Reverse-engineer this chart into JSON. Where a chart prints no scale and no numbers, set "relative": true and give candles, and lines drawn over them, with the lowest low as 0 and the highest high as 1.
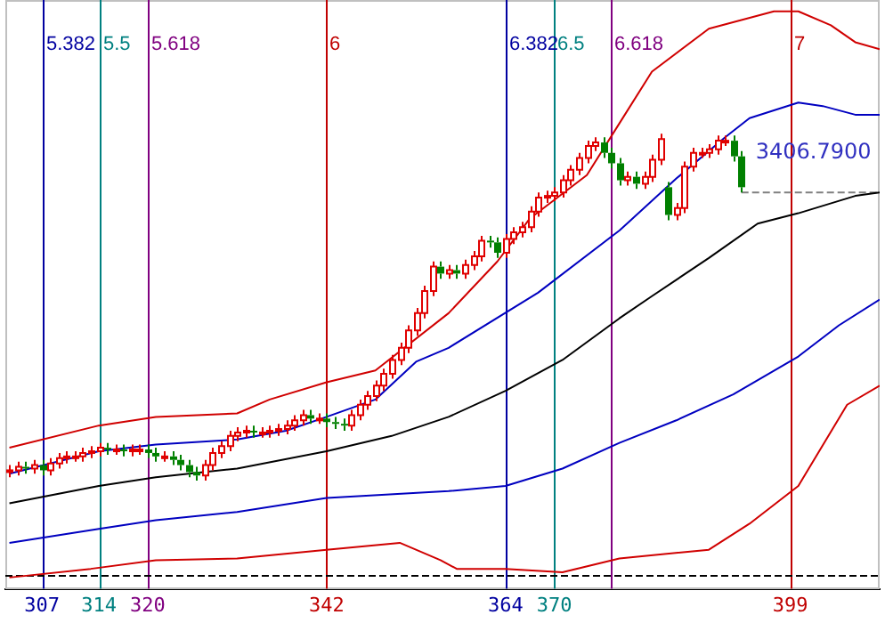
{
  "chart_data": {
    "type": "candlestick",
    "relative": true,
    "grid": false,
    "xlim": [
      302.5,
      410
    ],
    "xticks": [
      307,
      314,
      320,
      342,
      364,
      370,
      399
    ],
    "x": [
      303,
      304,
      305,
      306,
      307,
      308,
      309,
      310,
      311,
      312,
      313,
      314,
      315,
      316,
      317,
      318,
      319,
      320,
      321,
      322,
      323,
      324,
      325,
      326,
      327,
      328,
      329,
      330,
      331,
      332,
      333,
      334,
      335,
      336,
      337,
      338,
      339,
      340,
      341,
      342,
      343,
      344,
      345,
      346,
      347,
      348,
      349,
      350,
      351,
      352,
      353,
      354,
      355,
      356,
      357,
      358,
      359,
      360,
      361,
      362,
      363,
      364,
      365,
      366,
      367,
      368,
      369,
      370,
      371,
      372,
      373,
      374,
      375,
      376,
      377,
      378,
      379,
      380,
      381,
      382,
      383,
      384,
      385,
      386,
      387,
      388,
      389,
      390,
      391,
      392,
      393
    ],
    "ohlc": [
      [
        0.025,
        0.045,
        0.01,
        0.03
      ],
      [
        0.03,
        0.055,
        0.015,
        0.04
      ],
      [
        0.04,
        0.055,
        0.02,
        0.035
      ],
      [
        0.035,
        0.06,
        0.02,
        0.045
      ],
      [
        0.045,
        0.06,
        0.015,
        0.03
      ],
      [
        0.03,
        0.065,
        0.015,
        0.05
      ],
      [
        0.05,
        0.08,
        0.035,
        0.065
      ],
      [
        0.065,
        0.085,
        0.05,
        0.07
      ],
      [
        0.07,
        0.085,
        0.055,
        0.07
      ],
      [
        0.07,
        0.095,
        0.055,
        0.08
      ],
      [
        0.08,
        0.1,
        0.065,
        0.085
      ],
      [
        0.085,
        0.109,
        0.07,
        0.095
      ],
      [
        0.095,
        0.109,
        0.075,
        0.09
      ],
      [
        0.09,
        0.104,
        0.075,
        0.09
      ],
      [
        0.09,
        0.104,
        0.07,
        0.085
      ],
      [
        0.085,
        0.104,
        0.07,
        0.09
      ],
      [
        0.09,
        0.104,
        0.075,
        0.09
      ],
      [
        0.09,
        0.104,
        0.065,
        0.08
      ],
      [
        0.08,
        0.095,
        0.055,
        0.07
      ],
      [
        0.07,
        0.085,
        0.055,
        0.07
      ],
      [
        0.07,
        0.085,
        0.045,
        0.06
      ],
      [
        0.06,
        0.075,
        0.03,
        0.045
      ],
      [
        0.045,
        0.06,
        0.01,
        0.025
      ],
      [
        0.025,
        0.04,
        0,
        0.015
      ],
      [
        0.015,
        0.06,
        0,
        0.045
      ],
      [
        0.045,
        0.095,
        0.03,
        0.08
      ],
      [
        0.08,
        0.114,
        0.065,
        0.1
      ],
      [
        0.1,
        0.144,
        0.085,
        0.129
      ],
      [
        0.129,
        0.154,
        0.114,
        0.139
      ],
      [
        0.139,
        0.159,
        0.124,
        0.144
      ],
      [
        0.144,
        0.159,
        0.124,
        0.139
      ],
      [
        0.139,
        0.154,
        0.124,
        0.139
      ],
      [
        0.139,
        0.159,
        0.124,
        0.144
      ],
      [
        0.144,
        0.164,
        0.129,
        0.149
      ],
      [
        0.149,
        0.174,
        0.134,
        0.159
      ],
      [
        0.159,
        0.189,
        0.144,
        0.174
      ],
      [
        0.174,
        0.204,
        0.159,
        0.189
      ],
      [
        0.189,
        0.204,
        0.164,
        0.179
      ],
      [
        0.179,
        0.194,
        0.164,
        0.179
      ],
      [
        0.179,
        0.194,
        0.154,
        0.169
      ],
      [
        0.169,
        0.184,
        0.149,
        0.164
      ],
      [
        0.164,
        0.179,
        0.144,
        0.159
      ],
      [
        0.159,
        0.204,
        0.144,
        0.189
      ],
      [
        0.189,
        0.234,
        0.174,
        0.219
      ],
      [
        0.219,
        0.259,
        0.204,
        0.244
      ],
      [
        0.244,
        0.289,
        0.229,
        0.274
      ],
      [
        0.274,
        0.323,
        0.259,
        0.308
      ],
      [
        0.308,
        0.363,
        0.294,
        0.348
      ],
      [
        0.348,
        0.398,
        0.333,
        0.383
      ],
      [
        0.383,
        0.448,
        0.368,
        0.433
      ],
      [
        0.433,
        0.498,
        0.418,
        0.483
      ],
      [
        0.483,
        0.562,
        0.468,
        0.547
      ],
      [
        0.547,
        0.632,
        0.532,
        0.617
      ],
      [
        0.617,
        0.632,
        0.582,
        0.597
      ],
      [
        0.597,
        0.622,
        0.582,
        0.607
      ],
      [
        0.607,
        0.622,
        0.582,
        0.597
      ],
      [
        0.597,
        0.637,
        0.582,
        0.622
      ],
      [
        0.622,
        0.662,
        0.607,
        0.647
      ],
      [
        0.647,
        0.706,
        0.632,
        0.692
      ],
      [
        0.692,
        0.706,
        0.672,
        0.687
      ],
      [
        0.687,
        0.701,
        0.642,
        0.657
      ],
      [
        0.657,
        0.711,
        0.642,
        0.697
      ],
      [
        0.697,
        0.731,
        0.682,
        0.716
      ],
      [
        0.716,
        0.746,
        0.701,
        0.731
      ],
      [
        0.731,
        0.791,
        0.716,
        0.776
      ],
      [
        0.776,
        0.831,
        0.761,
        0.816
      ],
      [
        0.816,
        0.836,
        0.801,
        0.821
      ],
      [
        0.821,
        0.846,
        0.806,
        0.831
      ],
      [
        0.831,
        0.881,
        0.816,
        0.866
      ],
      [
        0.866,
        0.91,
        0.851,
        0.896
      ],
      [
        0.896,
        0.945,
        0.881,
        0.93
      ],
      [
        0.93,
        0.98,
        0.915,
        0.965
      ],
      [
        0.965,
        0.99,
        0.95,
        0.975
      ],
      [
        0.975,
        0.99,
        0.93,
        0.945
      ],
      [
        0.945,
        0.96,
        0.9,
        0.915
      ],
      [
        0.915,
        0.93,
        0.851,
        0.866
      ],
      [
        0.866,
        0.891,
        0.851,
        0.876
      ],
      [
        0.876,
        0.891,
        0.841,
        0.856
      ],
      [
        0.856,
        0.891,
        0.841,
        0.876
      ],
      [
        0.876,
        0.94,
        0.861,
        0.925
      ],
      [
        0.925,
        1,
        0.91,
        0.985
      ],
      [
        0.846,
        0.861,
        0.751,
        0.766
      ],
      [
        0.766,
        0.801,
        0.751,
        0.786
      ],
      [
        0.786,
        0.92,
        0.771,
        0.905
      ],
      [
        0.905,
        0.96,
        0.891,
        0.945
      ],
      [
        0.945,
        0.96,
        0.93,
        0.945
      ],
      [
        0.945,
        0.97,
        0.93,
        0.955
      ],
      [
        0.955,
        0.995,
        0.94,
        0.98
      ],
      [
        0.98,
        0.995,
        0.965,
        0.98
      ],
      [
        0.98,
        0.995,
        0.92,
        0.935
      ],
      [
        0.935,
        0.95,
        0.831,
        0.846
      ]
    ],
    "series": [
      {
        "type": "line",
        "color": "#d00000",
        "x": [
          303,
          314,
          321,
          331,
          335,
          342,
          348,
          357,
          363,
          367,
          374,
          378,
          382,
          389,
          393,
          397,
          400,
          404,
          407,
          410
        ],
        "values": [
          0.095,
          0.159,
          0.184,
          0.194,
          0.234,
          0.284,
          0.318,
          0.483,
          0.632,
          0.756,
          0.881,
          1.03,
          1.179,
          1.303,
          1.328,
          1.353,
          1.353,
          1.313,
          1.264,
          1.244
        ]
      },
      {
        "type": "line",
        "color": "#0000c0",
        "x": [
          303,
          314,
          321,
          331,
          337,
          342,
          348,
          353,
          357,
          368,
          378,
          385,
          391,
          394,
          400,
          403,
          407,
          410
        ],
        "values": [
          0.02,
          0.085,
          0.104,
          0.119,
          0.144,
          0.184,
          0.234,
          0.343,
          0.383,
          0.542,
          0.721,
          0.871,
          0.99,
          1.045,
          1.09,
          1.08,
          1.055,
          1.055
        ]
      },
      {
        "type": "line",
        "color": "#000000",
        "x": [
          303,
          314,
          321,
          331,
          342,
          350,
          357,
          364,
          371,
          378,
          382,
          389,
          395,
          400,
          407,
          410
        ],
        "values": [
          -0.065,
          -0.015,
          0.01,
          0.035,
          0.085,
          0.129,
          0.184,
          0.259,
          0.348,
          0.468,
          0.532,
          0.642,
          0.741,
          0.771,
          0.821,
          0.831
        ]
      },
      {
        "type": "line",
        "color": "#0000c0",
        "x": [
          303,
          314,
          321,
          331,
          342,
          357,
          364,
          371,
          378,
          385,
          392,
          400,
          405,
          410
        ],
        "values": [
          -0.179,
          -0.139,
          -0.114,
          -0.09,
          -0.05,
          -0.03,
          -0.015,
          0.035,
          0.109,
          0.174,
          0.249,
          0.358,
          0.448,
          0.522
        ]
      },
      {
        "type": "line",
        "color": "#d00000",
        "x": [
          303,
          313,
          321,
          331,
          342,
          351,
          356,
          358,
          364,
          371,
          378,
          389,
          394,
          400,
          406,
          410
        ],
        "values": [
          -0.279,
          -0.254,
          -0.229,
          -0.224,
          -0.199,
          -0.179,
          -0.229,
          -0.254,
          -0.254,
          -0.264,
          -0.224,
          -0.199,
          -0.124,
          -0.015,
          0.219,
          0.274
        ]
      },
      {
        "type": "line",
        "color": "#808080",
        "line_style": "dashed",
        "x": [
          393,
          410
        ],
        "values": [
          0.831,
          0.831
        ]
      }
    ],
    "ref_lines": [
      {
        "axis": "x",
        "value": 307,
        "color": "#0000a0"
      },
      {
        "axis": "x",
        "value": 314,
        "color": "#008080"
      },
      {
        "axis": "x",
        "value": 320,
        "color": "#800080"
      },
      {
        "axis": "x",
        "value": 342,
        "color": "#c00000"
      },
      {
        "axis": "x",
        "value": 364,
        "color": "#0000a0"
      },
      {
        "axis": "x",
        "value": 370,
        "color": "#008080"
      },
      {
        "axis": "x",
        "value": 377,
        "color": "#800080"
      },
      {
        "axis": "x",
        "value": 399,
        "color": "#c00000"
      },
      {
        "axis": "y",
        "value": -0.274,
        "color": "#000000",
        "line_style": "dashed"
      }
    ],
    "annotations": [
      {
        "text": "5.382",
        "x": 307
      },
      {
        "text": "5.5",
        "x": 314
      },
      {
        "text": "5.618",
        "x": 320
      },
      {
        "text": "6",
        "x": 342
      },
      {
        "text": "6.382",
        "x": 364
      },
      {
        "text": "6.5",
        "x": 370
      },
      {
        "text": "6.618",
        "x": 377
      },
      {
        "text": "7",
        "x": 399
      },
      {
        "text": "3406.7900",
        "x": 393,
        "y": 0.945
      }
    ]
  }
}
